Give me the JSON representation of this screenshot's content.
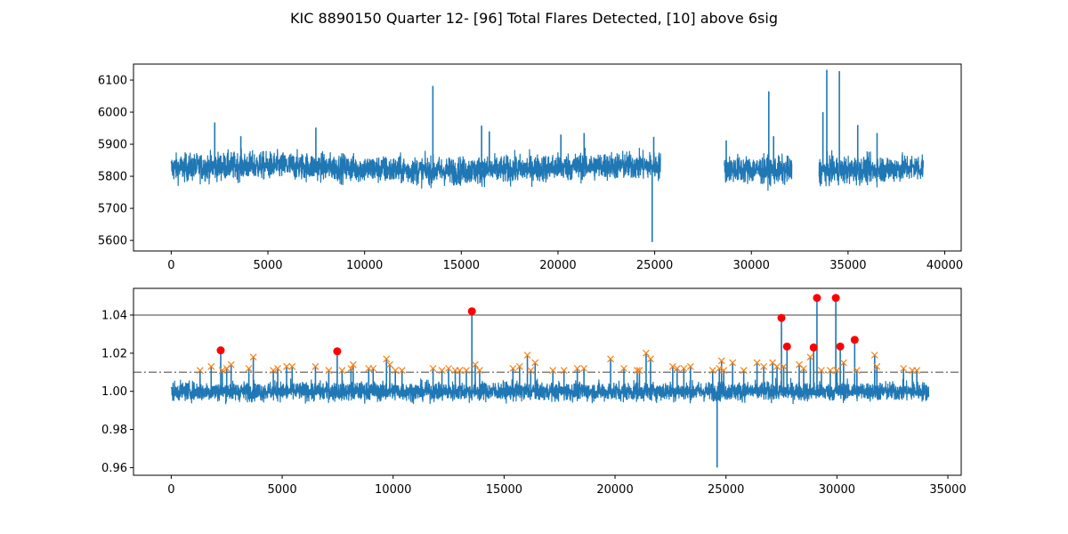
{
  "figure": {
    "title": "KIC 8890150 Quarter 12- [96] Total Flares Detected, [10] above 6sig"
  },
  "colors": {
    "series": "#1f77b4",
    "candidate": "#ff7f0e",
    "strong": "#ff0000",
    "threshold_solid": "#808080",
    "threshold_dashdot": "#808080"
  },
  "chart_data": [
    {
      "type": "line",
      "name": "top-light-curve",
      "xlim": [
        -1950,
        40850
      ],
      "ylim": [
        5567,
        6150
      ],
      "xticks": [
        0,
        5000,
        10000,
        15000,
        20000,
        25000,
        30000,
        35000,
        40000
      ],
      "yticks": [
        5600,
        5700,
        5800,
        5900,
        6000,
        6100
      ],
      "segments": [
        [
          0,
          25300
        ],
        [
          28600,
          32100
        ],
        [
          33500,
          38900
        ]
      ],
      "baseline": 5825,
      "noise_band": [
        5775,
        5880
      ],
      "spikes": [
        {
          "x": 2250,
          "y": 5968
        },
        {
          "x": 3600,
          "y": 5925
        },
        {
          "x": 7480,
          "y": 5952
        },
        {
          "x": 13530,
          "y": 6082
        },
        {
          "x": 16050,
          "y": 5958
        },
        {
          "x": 16450,
          "y": 5940
        },
        {
          "x": 20150,
          "y": 5930
        },
        {
          "x": 21350,
          "y": 5935
        },
        {
          "x": 24950,
          "y": 5923
        },
        {
          "x": 24870,
          "y": 5595
        },
        {
          "x": 28700,
          "y": 5912
        },
        {
          "x": 30900,
          "y": 6065
        },
        {
          "x": 31150,
          "y": 5925
        },
        {
          "x": 33700,
          "y": 6000
        },
        {
          "x": 33900,
          "y": 6132
        },
        {
          "x": 34550,
          "y": 6128
        },
        {
          "x": 35500,
          "y": 5960
        },
        {
          "x": 36500,
          "y": 5935
        }
      ]
    },
    {
      "type": "line",
      "name": "bottom-normalized",
      "xlim": [
        -1700,
        35600
      ],
      "ylim": [
        0.956,
        1.054
      ],
      "xticks": [
        0,
        5000,
        10000,
        15000,
        20000,
        25000,
        30000,
        35000
      ],
      "yticks": [
        0.96,
        0.98,
        1.0,
        1.02,
        1.04
      ],
      "ytick_labels": [
        "0.96",
        "0.98",
        "1.00",
        "1.02",
        "1.04"
      ],
      "segment": [
        0,
        34150
      ],
      "baseline": 1.0,
      "threshold_6sig": 1.04,
      "threshold_3sig": 1.01,
      "dip": {
        "x": 24600,
        "y": 0.96
      },
      "strong_flares": [
        {
          "x": 2230,
          "y": 1.0215
        },
        {
          "x": 7480,
          "y": 1.021
        },
        {
          "x": 13550,
          "y": 1.042
        },
        {
          "x": 27500,
          "y": 1.0385
        },
        {
          "x": 27750,
          "y": 1.0235
        },
        {
          "x": 28950,
          "y": 1.023
        },
        {
          "x": 29100,
          "y": 1.049
        },
        {
          "x": 29950,
          "y": 1.049
        },
        {
          "x": 30150,
          "y": 1.0235
        },
        {
          "x": 30800,
          "y": 1.027
        }
      ],
      "candidate_flares": [
        {
          "x": 1300,
          "y": 1.011
        },
        {
          "x": 1800,
          "y": 1.013
        },
        {
          "x": 2300,
          "y": 1.011
        },
        {
          "x": 2500,
          "y": 1.012
        },
        {
          "x": 2700,
          "y": 1.014
        },
        {
          "x": 3500,
          "y": 1.012
        },
        {
          "x": 3700,
          "y": 1.018
        },
        {
          "x": 4600,
          "y": 1.011
        },
        {
          "x": 4800,
          "y": 1.012
        },
        {
          "x": 5200,
          "y": 1.013
        },
        {
          "x": 5450,
          "y": 1.013
        },
        {
          "x": 6500,
          "y": 1.013
        },
        {
          "x": 7100,
          "y": 1.011
        },
        {
          "x": 7700,
          "y": 1.011
        },
        {
          "x": 8100,
          "y": 1.012
        },
        {
          "x": 8200,
          "y": 1.014
        },
        {
          "x": 8900,
          "y": 1.012
        },
        {
          "x": 9100,
          "y": 1.012
        },
        {
          "x": 9700,
          "y": 1.017
        },
        {
          "x": 9850,
          "y": 1.014
        },
        {
          "x": 10100,
          "y": 1.011
        },
        {
          "x": 10400,
          "y": 1.011
        },
        {
          "x": 11800,
          "y": 1.012
        },
        {
          "x": 12200,
          "y": 1.011
        },
        {
          "x": 12500,
          "y": 1.012
        },
        {
          "x": 12800,
          "y": 1.011
        },
        {
          "x": 13000,
          "y": 1.011
        },
        {
          "x": 13300,
          "y": 1.011
        },
        {
          "x": 13700,
          "y": 1.014
        },
        {
          "x": 13900,
          "y": 1.011
        },
        {
          "x": 15400,
          "y": 1.012
        },
        {
          "x": 15700,
          "y": 1.013
        },
        {
          "x": 16050,
          "y": 1.019
        },
        {
          "x": 16200,
          "y": 1.011
        },
        {
          "x": 16400,
          "y": 1.015
        },
        {
          "x": 17200,
          "y": 1.011
        },
        {
          "x": 17700,
          "y": 1.011
        },
        {
          "x": 18300,
          "y": 1.012
        },
        {
          "x": 18600,
          "y": 1.012
        },
        {
          "x": 19800,
          "y": 1.017
        },
        {
          "x": 20400,
          "y": 1.012
        },
        {
          "x": 21000,
          "y": 1.011
        },
        {
          "x": 21100,
          "y": 1.011
        },
        {
          "x": 21400,
          "y": 1.02
        },
        {
          "x": 21600,
          "y": 1.017
        },
        {
          "x": 22600,
          "y": 1.013
        },
        {
          "x": 22800,
          "y": 1.012
        },
        {
          "x": 23100,
          "y": 1.012
        },
        {
          "x": 23400,
          "y": 1.013
        },
        {
          "x": 24400,
          "y": 1.011
        },
        {
          "x": 24700,
          "y": 1.012
        },
        {
          "x": 24800,
          "y": 1.016
        },
        {
          "x": 24900,
          "y": 1.011
        },
        {
          "x": 25300,
          "y": 1.015
        },
        {
          "x": 25800,
          "y": 1.011
        },
        {
          "x": 26400,
          "y": 1.015
        },
        {
          "x": 26700,
          "y": 1.013
        },
        {
          "x": 27100,
          "y": 1.015
        },
        {
          "x": 27300,
          "y": 1.013
        },
        {
          "x": 27600,
          "y": 1.013
        },
        {
          "x": 28300,
          "y": 1.014
        },
        {
          "x": 28500,
          "y": 1.012
        },
        {
          "x": 28800,
          "y": 1.018
        },
        {
          "x": 29300,
          "y": 1.011
        },
        {
          "x": 29700,
          "y": 1.011
        },
        {
          "x": 30000,
          "y": 1.011
        },
        {
          "x": 30300,
          "y": 1.015
        },
        {
          "x": 30900,
          "y": 1.011
        },
        {
          "x": 31700,
          "y": 1.019
        },
        {
          "x": 31800,
          "y": 1.013
        },
        {
          "x": 33000,
          "y": 1.012
        },
        {
          "x": 33400,
          "y": 1.011
        },
        {
          "x": 33600,
          "y": 1.011
        }
      ]
    }
  ]
}
